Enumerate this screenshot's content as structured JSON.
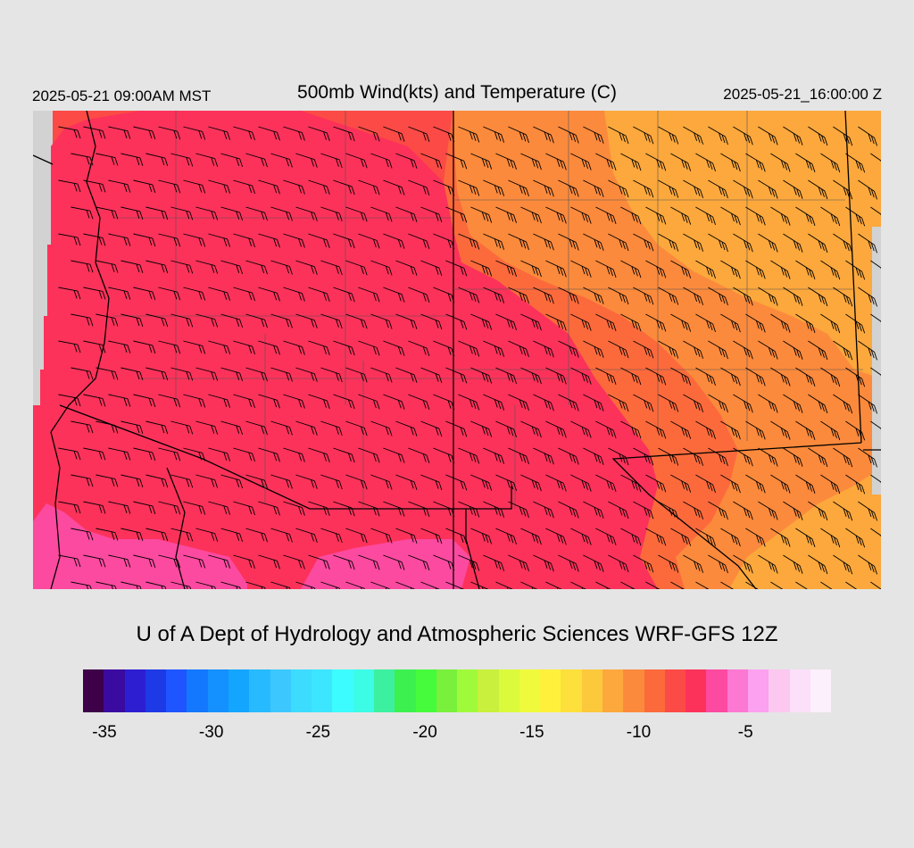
{
  "header": {
    "local_time": "2025-05-21 09:00AM MST",
    "title": "500mb Wind(kts) and Temperature (C)",
    "valid_time": "2025-05-21_16:00:00 Z"
  },
  "credit": "U of A Dept of Hydrology and Atmospheric Sciences WRF-GFS 12Z",
  "colorbar": {
    "colors": [
      "#3d0049",
      "#3b0aa0",
      "#2d1ed2",
      "#1e3ae6",
      "#1e55ff",
      "#1478ff",
      "#1490ff",
      "#14a6ff",
      "#28baff",
      "#3cc8ff",
      "#3cdcff",
      "#3ce6ff",
      "#3cfcff",
      "#3cfce6",
      "#3cf0a0",
      "#3cf050",
      "#46fa3c",
      "#78f03c",
      "#a0fa3c",
      "#c8f03c",
      "#dcfa3c",
      "#f0fa3c",
      "#fff03c",
      "#fde03c",
      "#fcc83c",
      "#fca83c",
      "#fc8a3c",
      "#fc6a3c",
      "#fc4a46",
      "#fc325a",
      "#fc4aa0",
      "#fc78d2",
      "#fca0f0",
      "#fcc8f0",
      "#fce0fa",
      "#fcf0fc"
    ],
    "tick_labels": [
      {
        "value": -35,
        "text": "-35"
      },
      {
        "value": -30,
        "text": "-30"
      },
      {
        "value": -25,
        "text": "-25"
      },
      {
        "value": -20,
        "text": "-20"
      },
      {
        "value": -15,
        "text": "-15"
      },
      {
        "value": -10,
        "text": "-10"
      },
      {
        "value": -5,
        "text": "-5"
      }
    ],
    "range": [
      -36,
      -1
    ]
  },
  "map": {
    "background_color": "#d2d2d2",
    "temperature_regions": {
      "orange_light": "#fca83c",
      "orange": "#fc8a3c",
      "orange_red": "#fc6a3c",
      "red": "#fc4a46",
      "crimson": "#fc325a",
      "pink": "#fc4aa0"
    }
  }
}
